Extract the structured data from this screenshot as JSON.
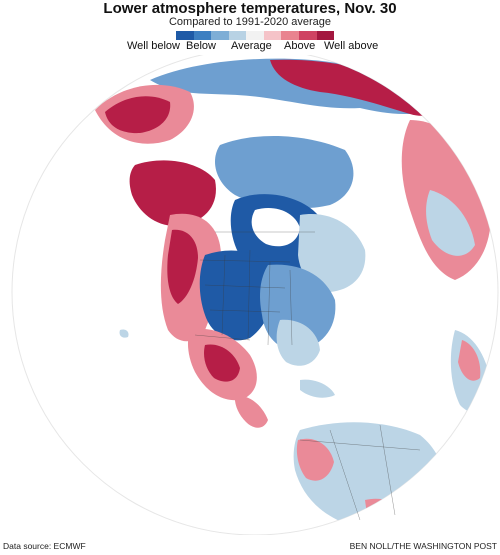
{
  "header": {
    "title": "Lower atmosphere temperatures, Nov. 30",
    "subtitle": "Compared to 1991-2020 average"
  },
  "legend": {
    "labels": [
      "Well below",
      "Below",
      "Average",
      "Above",
      "Well above"
    ],
    "colors": [
      "#1f5aa6",
      "#3d7fc1",
      "#7eaed6",
      "#b8d2e4",
      "#f2f2f2",
      "#f5c3c8",
      "#e9838f",
      "#cf4262",
      "#a3173f"
    ]
  },
  "map": {
    "region": "North America and surrounding hemisphere",
    "land_colors": {
      "well_below": "#1f5aa6",
      "below": "#6e9fd0",
      "average": "#bcd5e6",
      "above": "#ea8a98",
      "well_above": "#b61e47",
      "no_data": "#ffffff"
    }
  },
  "footer": {
    "source": "Data source: ECMWF",
    "credit": "BEN NOLL/THE WASHINGTON POST"
  }
}
